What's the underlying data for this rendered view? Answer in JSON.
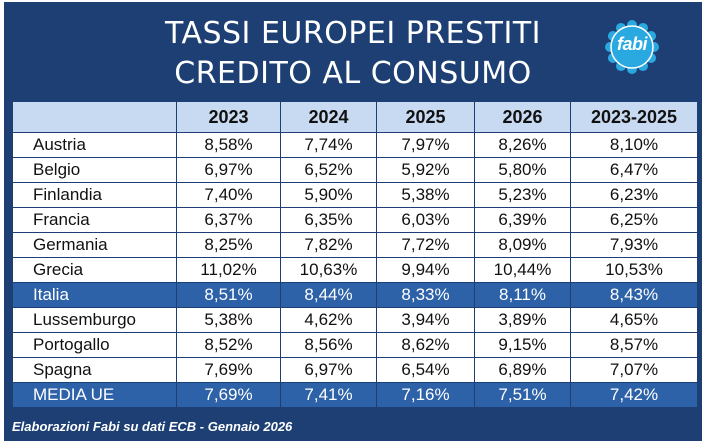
{
  "title": {
    "line1": "TASSI EUROPEI PRESTITI",
    "line2": "CREDITO AL CONSUMO"
  },
  "logo": {
    "text": "fabi",
    "color": "#2aa8e0"
  },
  "colors": {
    "background": "#1d3f73",
    "header_row": "#c8daf2",
    "highlight_row": "#2d62a8"
  },
  "table": {
    "columns": [
      "",
      "2023",
      "2024",
      "2025",
      "2026",
      "2023-2025"
    ],
    "rows": [
      {
        "country": "Austria",
        "values": [
          "8,58%",
          "7,74%",
          "7,97%",
          "8,26%",
          "8,10%"
        ],
        "highlight": false
      },
      {
        "country": "Belgio",
        "values": [
          "6,97%",
          "6,52%",
          "5,92%",
          "5,80%",
          "6,47%"
        ],
        "highlight": false
      },
      {
        "country": "Finlandia",
        "values": [
          "7,40%",
          "5,90%",
          "5,38%",
          "5,23%",
          "6,23%"
        ],
        "highlight": false
      },
      {
        "country": "Francia",
        "values": [
          "6,37%",
          "6,35%",
          "6,03%",
          "6,39%",
          "6,25%"
        ],
        "highlight": false
      },
      {
        "country": "Germania",
        "values": [
          "8,25%",
          "7,82%",
          "7,72%",
          "8,09%",
          "7,93%"
        ],
        "highlight": false
      },
      {
        "country": "Grecia",
        "values": [
          "11,02%",
          "10,63%",
          "9,94%",
          "10,44%",
          "10,53%"
        ],
        "highlight": false
      },
      {
        "country": "Italia",
        "values": [
          "8,51%",
          "8,44%",
          "8,33%",
          "8,11%",
          "8,43%"
        ],
        "highlight": true
      },
      {
        "country": "Lussemburgo",
        "values": [
          "5,38%",
          "4,62%",
          "3,94%",
          "3,89%",
          "4,65%"
        ],
        "highlight": false
      },
      {
        "country": "Portogallo",
        "values": [
          "8,52%",
          "8,56%",
          "8,62%",
          "9,15%",
          "8,57%"
        ],
        "highlight": false
      },
      {
        "country": "Spagna",
        "values": [
          "7,69%",
          "6,97%",
          "6,54%",
          "6,89%",
          "7,07%"
        ],
        "highlight": false
      },
      {
        "country": "MEDIA UE",
        "values": [
          "7,69%",
          "7,41%",
          "7,16%",
          "7,51%",
          "7,42%"
        ],
        "highlight": true
      }
    ]
  },
  "footer": {
    "source": "Elaborazioni Fabi su dati ECB - Gennaio 2026"
  }
}
